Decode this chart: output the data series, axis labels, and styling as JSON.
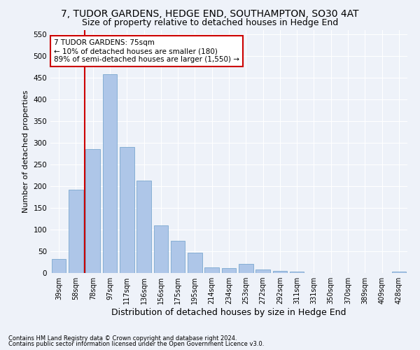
{
  "title": "7, TUDOR GARDENS, HEDGE END, SOUTHAMPTON, SO30 4AT",
  "subtitle": "Size of property relative to detached houses in Hedge End",
  "xlabel": "Distribution of detached houses by size in Hedge End",
  "ylabel": "Number of detached properties",
  "categories": [
    "39sqm",
    "58sqm",
    "78sqm",
    "97sqm",
    "117sqm",
    "136sqm",
    "156sqm",
    "175sqm",
    "195sqm",
    "214sqm",
    "234sqm",
    "253sqm",
    "272sqm",
    "292sqm",
    "311sqm",
    "331sqm",
    "350sqm",
    "370sqm",
    "389sqm",
    "409sqm",
    "428sqm"
  ],
  "values": [
    32,
    192,
    285,
    457,
    290,
    213,
    110,
    74,
    47,
    13,
    12,
    21,
    8,
    5,
    4,
    0,
    0,
    0,
    0,
    0,
    3
  ],
  "bar_color": "#aec6e8",
  "bar_edge_color": "#6a9ec8",
  "vline_color": "#cc0000",
  "annotation_text": "7 TUDOR GARDENS: 75sqm\n← 10% of detached houses are smaller (180)\n89% of semi-detached houses are larger (1,550) →",
  "annotation_box_color": "#ffffff",
  "annotation_box_edge": "#cc0000",
  "ylim": [
    0,
    560
  ],
  "yticks": [
    0,
    50,
    100,
    150,
    200,
    250,
    300,
    350,
    400,
    450,
    500,
    550
  ],
  "footnote1": "Contains HM Land Registry data © Crown copyright and database right 2024.",
  "footnote2": "Contains public sector information licensed under the Open Government Licence v3.0.",
  "bg_color": "#eef2f9",
  "plot_bg_color": "#eef2f9",
  "title_fontsize": 10,
  "subtitle_fontsize": 9,
  "xlabel_fontsize": 9,
  "ylabel_fontsize": 8,
  "tick_label_fontsize": 7,
  "footnote_fontsize": 6,
  "annotation_fontsize": 7.5
}
